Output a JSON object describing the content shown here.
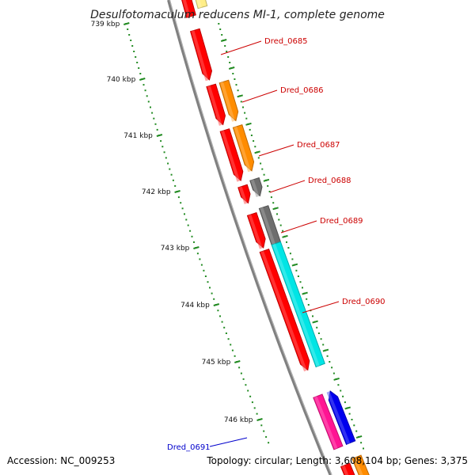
{
  "title": "Desulfotomaculum reducens MI-1, complete genome",
  "footer": {
    "accession": "Accession: NC_009253",
    "summary": "Topology: circular; Length: 3,608,104 bp; Genes: 3,375"
  },
  "colors": {
    "backbone": "#808080",
    "ruler": "#228b22",
    "forward_label": "#cc0000",
    "reverse_label": "#0000cc",
    "gene_red": "#ff0000",
    "gene_orange": "#ff8c00",
    "gene_gray": "#6e6e6e",
    "gene_cyan": "#00e5e5",
    "gene_pink": "#ff1493",
    "gene_blue": "#0000ee",
    "gene_yellow": "#ffee88"
  },
  "ruler": {
    "ticks": [
      {
        "kbp": 739,
        "label": "739 kbp"
      },
      {
        "kbp": 740,
        "label": "740 kbp"
      },
      {
        "kbp": 741,
        "label": "741 kbp"
      },
      {
        "kbp": 742,
        "label": "742 kbp"
      },
      {
        "kbp": 743,
        "label": "743 kbp"
      },
      {
        "kbp": 744,
        "label": "744 kbp"
      },
      {
        "kbp": 745,
        "label": "745 kbp"
      },
      {
        "kbp": 746,
        "label": "746 kbp"
      }
    ]
  },
  "labels": [
    {
      "text": "Dred_0685",
      "strand": "forward"
    },
    {
      "text": "Dred_0686",
      "strand": "forward"
    },
    {
      "text": "Dred_0687",
      "strand": "forward"
    },
    {
      "text": "Dred_0688",
      "strand": "forward"
    },
    {
      "text": "Dred_0689",
      "strand": "forward"
    },
    {
      "text": "Dred_0690",
      "strand": "forward"
    },
    {
      "text": "Dred_0691",
      "strand": "reverse"
    }
  ]
}
